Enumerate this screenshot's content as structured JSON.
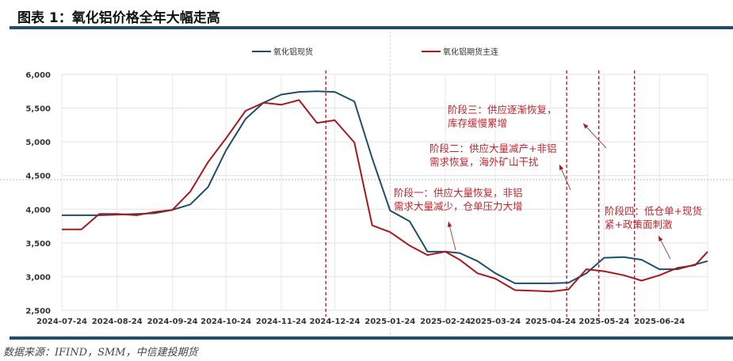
{
  "title": "图表 1：氧化铝价格全年大幅走高",
  "source": "数据来源：IFIND，SMM，中信建投期货",
  "chart_data": {
    "type": "line",
    "title": "",
    "xlabel": "",
    "ylabel": "",
    "ylim": [
      2500,
      6000
    ],
    "yticks": [
      "2,500",
      "3,000",
      "3,500",
      "4,000",
      "4,500",
      "5,000",
      "5,500",
      "6,000"
    ],
    "ytick_values": [
      2500,
      3000,
      3500,
      4000,
      4500,
      5000,
      5500,
      6000
    ],
    "xticks": [
      "2024-07-24",
      "2024-08-24",
      "2024-09-24",
      "2024-10-24",
      "2024-11-24",
      "2024-12-24",
      "2025-01-24",
      "2025-02-24",
      "2025-03-24",
      "2025-04-24",
      "2025-05-24",
      "2025-06-24"
    ],
    "xlim": [
      "2024-07-24",
      "2025-07-21"
    ],
    "grid": true,
    "legend_position": "top",
    "x": [
      "2024-07-24",
      "2024-08-04",
      "2024-08-14",
      "2024-08-24",
      "2024-09-04",
      "2024-09-14",
      "2024-09-24",
      "2024-10-04",
      "2024-10-14",
      "2024-10-24",
      "2024-11-04",
      "2024-11-14",
      "2024-11-24",
      "2024-12-04",
      "2024-12-14",
      "2024-12-24",
      "2025-01-04",
      "2025-01-14",
      "2025-01-24",
      "2025-02-04",
      "2025-02-14",
      "2025-02-24",
      "2025-03-04",
      "2025-03-14",
      "2025-03-24",
      "2025-04-04",
      "2025-04-14",
      "2025-04-24",
      "2025-05-04",
      "2025-05-14",
      "2025-05-24",
      "2025-06-04",
      "2025-06-14",
      "2025-06-24",
      "2025-07-04",
      "2025-07-14",
      "2025-07-21"
    ],
    "series": [
      {
        "name": "氧化铝现货",
        "color": "#1f4e6b",
        "values": [
          3910,
          3910,
          3910,
          3920,
          3930,
          3940,
          3990,
          4070,
          4330,
          4870,
          5340,
          5580,
          5700,
          5740,
          5750,
          5740,
          5600,
          4755,
          3980,
          3820,
          3370,
          3370,
          3350,
          3230,
          3050,
          2900,
          2900,
          2900,
          2910,
          3050,
          3280,
          3290,
          3250,
          3110,
          3110,
          3180,
          3230
        ]
      },
      {
        "name": "氧化铝期货主连",
        "color": "#a8181f",
        "values": [
          3700,
          3700,
          3930,
          3930,
          3910,
          3960,
          3990,
          4260,
          4700,
          5050,
          5460,
          5580,
          5550,
          5620,
          5280,
          5320,
          4990,
          3760,
          3660,
          3460,
          3320,
          3370,
          3250,
          3050,
          2970,
          2800,
          2790,
          2780,
          2810,
          3110,
          3080,
          3020,
          2940,
          3020,
          3130,
          3170,
          3370
        ]
      }
    ],
    "vertical_markers": [
      "2024-12-19",
      "2025-05-03",
      "2025-05-21",
      "2025-06-10"
    ],
    "marker_color": "#a8181f",
    "annotations": [
      {
        "lines": [
          "阶段一：供应大量恢复，非铝",
          "需求大量减少，仓单压力大增"
        ]
      },
      {
        "lines": [
          "阶段二：供应大量减产+非铝",
          "需求恢复，海外矿山干扰"
        ]
      },
      {
        "lines": [
          "阶段三：供应逐渐恢复，",
          "库存缓慢累增"
        ]
      },
      {
        "lines": [
          "阶段四：低仓单+现货",
          "紧+政策面刺激"
        ]
      }
    ]
  }
}
